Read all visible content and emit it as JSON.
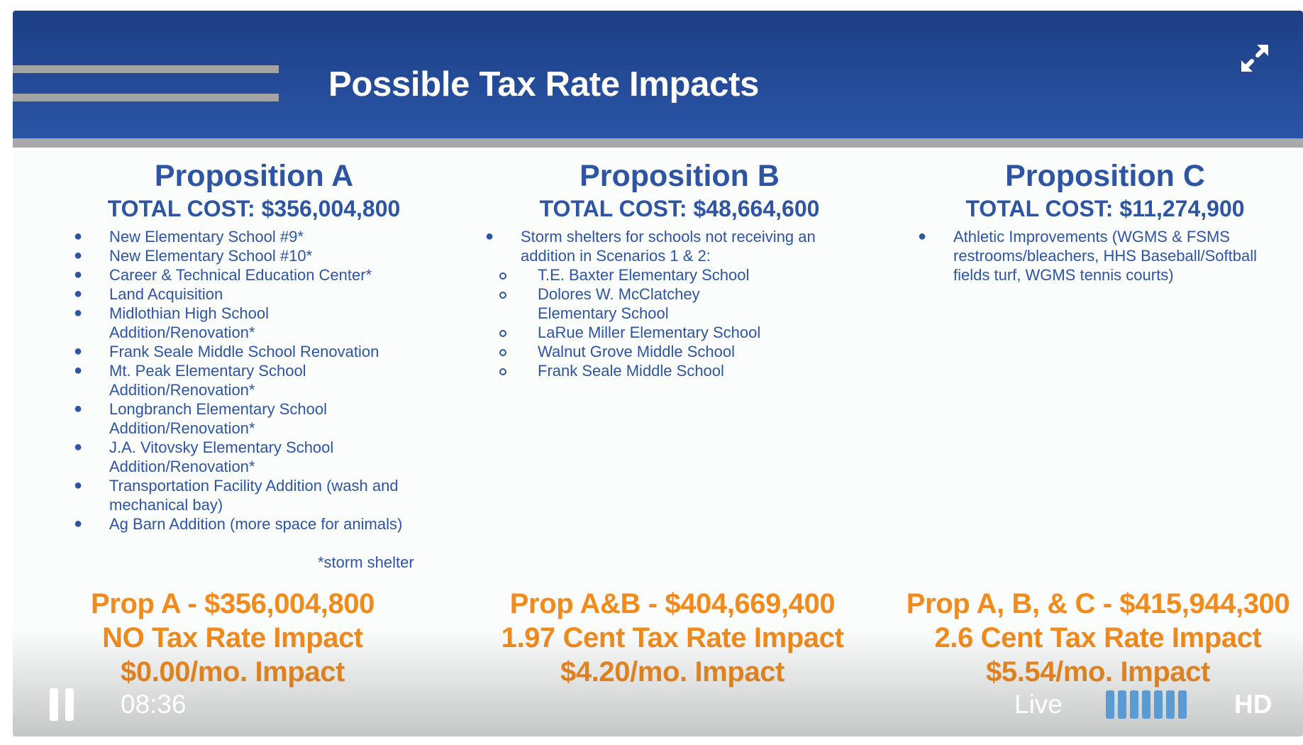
{
  "slide": {
    "title": "Possible Tax Rate Impacts",
    "footnote": "*storm shelter",
    "propositions": [
      {
        "title": "Proposition A",
        "total_cost": "TOTAL COST: $356,004,800",
        "items": [
          "New Elementary School #9*",
          "New Elementary School #10*",
          "Career & Technical Education Center*",
          "Land Acquisition",
          "Midlothian High School Addition/Renovation*",
          "Frank Seale Middle School Renovation",
          "Mt. Peak Elementary School Addition/Renovation*",
          "Longbranch Elementary School Addition/Renovation*",
          "J.A. Vitovsky Elementary School Addition/Renovation*",
          "Transportation Facility Addition (wash and mechanical bay)",
          "Ag Barn Addition (more space for animals)"
        ]
      },
      {
        "title": "Proposition B",
        "total_cost": "TOTAL COST: $48,664,600",
        "items": [
          "Storm shelters for schools not receiving an addition in Scenarios 1 & 2:"
        ],
        "sub_items": [
          "T.E. Baxter Elementary School",
          "Dolores W. McClatchey Elementary School",
          "LaRue Miller Elementary School",
          "Walnut Grove Middle School",
          "Frank Seale Middle School"
        ]
      },
      {
        "title": "Proposition C",
        "total_cost": "TOTAL COST: $11,274,900",
        "items": [
          "Athletic Improvements (WGMS & FSMS restrooms/bleachers, HHS Baseball/Softball fields turf, WGMS tennis courts)"
        ]
      }
    ],
    "impacts": [
      {
        "line1": "Prop A - $356,004,800",
        "line2": "NO Tax Rate Impact",
        "line3": "$0.00/mo. Impact"
      },
      {
        "line1": "Prop A&B - $404,669,400",
        "line2": "1.97 Cent Tax Rate Impact",
        "line3": "$4.20/mo. Impact"
      },
      {
        "line1": "Prop A, B, & C - $415,944,300",
        "line2": "2.6 Cent Tax Rate Impact",
        "line3": "$5.54/mo. Impact"
      }
    ]
  },
  "player": {
    "time": "08:36",
    "live_label": "Live",
    "quality_label": "HD",
    "quality_bar_count": 7,
    "icons": {
      "pause": "pause-icon",
      "expand": "expand-icon"
    },
    "colors": {
      "header": "#2a55a6",
      "text_blue": "#2d55a3",
      "impact_orange": "#f28a1c",
      "quality_bars": "#5b9bd3"
    }
  }
}
